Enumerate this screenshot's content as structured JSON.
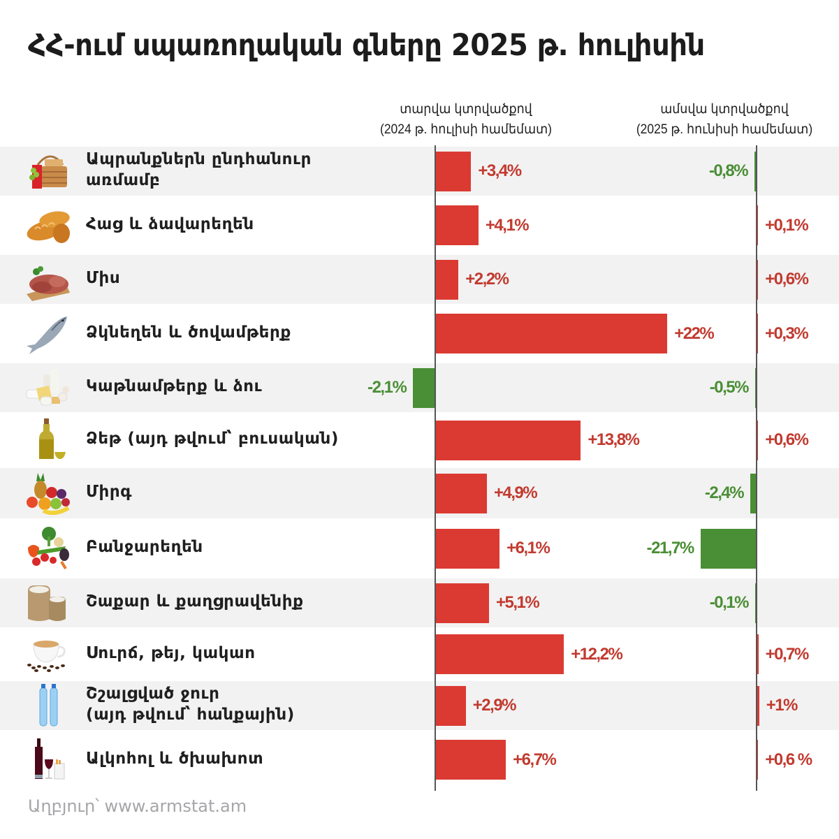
{
  "title": "ՀՀ-ում սպառողական գները 2025 թ. հուլիսին",
  "headers": {
    "yearly": {
      "line1": "տարվա կտրվածքով",
      "line2": "(2024 թ. հուլիսի համեմատ)"
    },
    "monthly": {
      "line1": "ամսվա կտրվածքով",
      "line2": "(2025 թ. հունիսի համեմատ)"
    }
  },
  "source": "Աղբյուր՝ www.armstat.am",
  "colors": {
    "positive_bar": "#db3a32",
    "positive_text": "#c23a2f",
    "negative": "#4a8e35",
    "row_alt_bg": "#f2f2f2"
  },
  "rows": [
    {
      "icon": "picnic-basket-icon",
      "label_lines": [
        "Ապրանքներն ընդհանուր",
        "առմամբ"
      ],
      "yearly": "+3,4%",
      "monthly": "-0,8%"
    },
    {
      "icon": "bread-icon",
      "label_lines": [
        "Հաց և ձավարեղեն"
      ],
      "yearly": "+4,1%",
      "monthly": "+0,1%"
    },
    {
      "icon": "meat-icon",
      "label_lines": [
        "Միս"
      ],
      "yearly": "+2,2%",
      "monthly": "+0,6%"
    },
    {
      "icon": "fish-icon",
      "label_lines": [
        "Ձկնեղեն և ծովամթերք"
      ],
      "yearly": "+22%",
      "monthly": "+0,3%"
    },
    {
      "icon": "dairy-icon",
      "label_lines": [
        "Կաթնամթերք և ձու"
      ],
      "yearly": "-2,1%",
      "monthly": "-0,5%"
    },
    {
      "icon": "oil-bottle-icon",
      "label_lines": [
        "Ձեթ (այդ թվում՝ բուսական)"
      ],
      "yearly": "+13,8%",
      "monthly": "+0,6%"
    },
    {
      "icon": "fruit-icon",
      "label_lines": [
        "Միրգ"
      ],
      "yearly": "+4,9%",
      "monthly": "-2,4%"
    },
    {
      "icon": "vegetables-icon",
      "label_lines": [
        "Բանջարեղեն"
      ],
      "yearly": "+6,1%",
      "monthly": "-21,7%"
    },
    {
      "icon": "sugar-sack-icon",
      "label_lines": [
        "Շաքար և քաղցրավենիք"
      ],
      "yearly": "+5,1%",
      "monthly": "-0,1%"
    },
    {
      "icon": "coffee-cup-icon",
      "label_lines": [
        "Սուրճ, թեյ, կակաո"
      ],
      "yearly": "+12,2%",
      "monthly": "+0,7%"
    },
    {
      "icon": "water-bottles-icon",
      "label_lines": [
        "Շշալցված ջուր",
        "(այդ թվում՝ հանքային)"
      ],
      "yearly": "+2,9%",
      "monthly": "+1%"
    },
    {
      "icon": "wine-cigarettes-icon",
      "label_lines": [
        "Ալկոհոլ և ծխախոտ"
      ],
      "yearly": "+6,7%",
      "monthly": "+0,6 %"
    }
  ],
  "chart_data": {
    "type": "bar",
    "orientation": "horizontal",
    "title": "ՀՀ-ում սպառողական գները 2025 թ. հուլիսին",
    "categories": [
      "Ապրանքներն ընդհանուր առմամբ",
      "Հաց և ձավարեղեն",
      "Միս",
      "Ձկնեղեն և ծովամթերք",
      "Կաթնամթերք և ձու",
      "Ձեթ (այդ թվում՝ բուսական)",
      "Միրգ",
      "Բանջարեղեն",
      "Շաքար և քաղցրավենիք",
      "Սուրճ, թեյ, կակաո",
      "Շշալցված ջուր (այդ թվում՝ հանքային)",
      "Ալկոհոլ և ծխախոտ"
    ],
    "series": [
      {
        "name": "տարվա կտրվածքով (2024 թ. հուլիսի համեմատ)",
        "values": [
          3.4,
          4.1,
          2.2,
          22,
          -2.1,
          13.8,
          4.9,
          6.1,
          5.1,
          12.2,
          2.9,
          6.7
        ]
      },
      {
        "name": "ամսվա կտրվածքով (2025 թ. հունիսի համեմատ)",
        "values": [
          -0.8,
          0.1,
          0.6,
          0.3,
          -0.5,
          0.6,
          -2.4,
          -21.7,
          -0.1,
          0.7,
          1.0,
          0.6
        ]
      }
    ],
    "units": "%",
    "colors": {
      "increase": "#db3a32",
      "decrease": "#4a8e35"
    },
    "xlabel": "",
    "ylabel": "",
    "grid": false,
    "source": "Աղբյուր՝ www.armstat.am"
  }
}
